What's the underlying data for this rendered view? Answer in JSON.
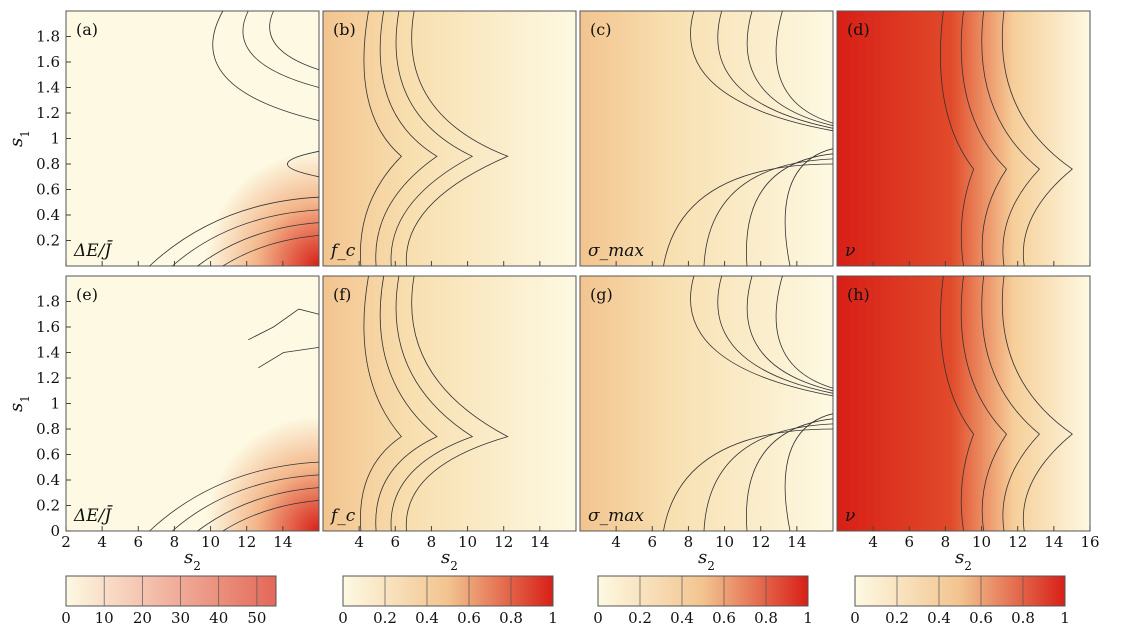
{
  "figure": {
    "y_axis_title": "s",
    "y_axis_sub": "1",
    "x_axis_title": "s",
    "x_axis_sub": "2"
  },
  "chart_data": [
    {
      "id": "a",
      "type": "heatmap",
      "panel_label": "(a)",
      "quantity": "ΔE/J̄",
      "row": 0,
      "col": 0,
      "xlabel": "",
      "ylabel": "s1",
      "xlim": [
        2,
        16
      ],
      "ylim": [
        0,
        2
      ],
      "colorbar": 0,
      "hot": "bottom-right"
    },
    {
      "id": "b",
      "type": "heatmap",
      "panel_label": "(b)",
      "quantity": "f_c",
      "row": 0,
      "col": 1,
      "xlabel": "",
      "ylabel": "",
      "xlim": [
        2,
        16
      ],
      "ylim": [
        0,
        2
      ],
      "colorbar": 1,
      "hot": "left"
    },
    {
      "id": "c",
      "type": "heatmap",
      "panel_label": "(c)",
      "quantity": "σ_max",
      "row": 0,
      "col": 2,
      "xlabel": "",
      "ylabel": "",
      "xlim": [
        2,
        16
      ],
      "ylim": [
        0,
        2
      ],
      "colorbar": 2,
      "hot": "left"
    },
    {
      "id": "d",
      "type": "heatmap",
      "panel_label": "(d)",
      "quantity": "ν",
      "row": 0,
      "col": 3,
      "xlabel": "",
      "ylabel": "",
      "xlim": [
        2,
        16
      ],
      "ylim": [
        0,
        2
      ],
      "colorbar": 3,
      "hot": "left-strong"
    },
    {
      "id": "e",
      "type": "heatmap",
      "panel_label": "(e)",
      "quantity": "ΔE/J̄",
      "row": 1,
      "col": 0,
      "xlabel": "s2",
      "ylabel": "s1",
      "xlim": [
        2,
        16
      ],
      "ylim": [
        0,
        2
      ],
      "colorbar": 0,
      "hot": "bottom-right"
    },
    {
      "id": "f",
      "type": "heatmap",
      "panel_label": "(f)",
      "quantity": "f_c",
      "row": 1,
      "col": 1,
      "xlabel": "s2",
      "ylabel": "",
      "xlim": [
        2,
        16
      ],
      "ylim": [
        0,
        2
      ],
      "colorbar": 1,
      "hot": "left"
    },
    {
      "id": "g",
      "type": "heatmap",
      "panel_label": "(g)",
      "quantity": "σ_max",
      "row": 1,
      "col": 2,
      "xlabel": "s2",
      "ylabel": "",
      "xlim": [
        2,
        16
      ],
      "ylim": [
        0,
        2
      ],
      "colorbar": 2,
      "hot": "left"
    },
    {
      "id": "h",
      "type": "heatmap",
      "panel_label": "(h)",
      "quantity": "ν",
      "row": 1,
      "col": 3,
      "xlabel": "s2",
      "ylabel": "",
      "xlim": [
        2,
        16
      ],
      "ylim": [
        0,
        2
      ],
      "colorbar": 3,
      "hot": "left-strong"
    }
  ],
  "y_ticks_top": [
    "0.2",
    "0.4",
    "0.6",
    "0.8",
    "1",
    "1.2",
    "1.4",
    "1.6",
    "1.8"
  ],
  "y_ticks_bottom": [
    "0",
    "0.2",
    "0.4",
    "0.6",
    "0.8",
    "1",
    "1.2",
    "1.4",
    "1.6",
    "1.8"
  ],
  "x_ticks": [
    [
      "2",
      "4",
      "6",
      "8",
      "10",
      "12",
      "14"
    ],
    [
      "4",
      "6",
      "8",
      "10",
      "12",
      "14"
    ],
    [
      "4",
      "6",
      "8",
      "10",
      "12",
      "14"
    ],
    [
      "4",
      "6",
      "8",
      "10",
      "12",
      "14",
      "16"
    ]
  ],
  "x_tick_values": [
    [
      2,
      4,
      6,
      8,
      10,
      12,
      14
    ],
    [
      4,
      6,
      8,
      10,
      12,
      14
    ],
    [
      4,
      6,
      8,
      10,
      12,
      14
    ],
    [
      4,
      6,
      8,
      10,
      12,
      14,
      16
    ]
  ],
  "colorbars": [
    {
      "min": 0,
      "max": 55,
      "ticks": [
        "0",
        "10",
        "20",
        "30",
        "40",
        "50"
      ],
      "values": [
        0,
        10,
        20,
        30,
        40,
        50
      ]
    },
    {
      "min": 0,
      "max": 1,
      "ticks": [
        "0",
        "0.2",
        "0.4",
        "0.6",
        "0.8",
        "1"
      ],
      "values": [
        0,
        0.2,
        0.4,
        0.6,
        0.8,
        1
      ]
    },
    {
      "min": 0,
      "max": 1,
      "ticks": [
        "0",
        "0.2",
        "0.4",
        "0.6",
        "0.8",
        "1"
      ],
      "values": [
        0,
        0.2,
        0.4,
        0.6,
        0.8,
        1
      ]
    },
    {
      "min": 0,
      "max": 1,
      "ticks": [
        "0",
        "0.2",
        "0.4",
        "0.6",
        "0.8",
        "1"
      ],
      "values": [
        0,
        0.2,
        0.4,
        0.6,
        0.8,
        1
      ]
    }
  ],
  "colors": {
    "low": "#fdf9e2",
    "mid": "#f2c48f",
    "high": "#d81f17",
    "contour": "#333333"
  }
}
